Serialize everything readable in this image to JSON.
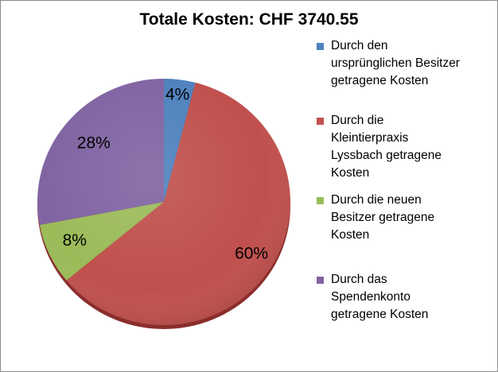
{
  "chart_data": {
    "type": "pie",
    "title": "Totale Kosten: CHF 3740.55",
    "slices": [
      {
        "label": "Durch den\nursprünglichen Besitzer\ngetragene Kosten",
        "value": 4,
        "display": "4%",
        "color": "#4f81bd"
      },
      {
        "label": "Durch die\nKleintierpraxis\nLyssbach getragene\nKosten",
        "value": 60,
        "display": "60%",
        "color": "#c0504d"
      },
      {
        "label": "Durch die neuen\nBesitzer getragene\nKosten",
        "value": 8,
        "display": "8%",
        "color": "#9bbb59"
      },
      {
        "label": "Durch das\nSpendenkonto\ngetragene Kosten",
        "value": 28,
        "display": "28%",
        "color": "#8064a2"
      }
    ],
    "legend_position": "right"
  }
}
